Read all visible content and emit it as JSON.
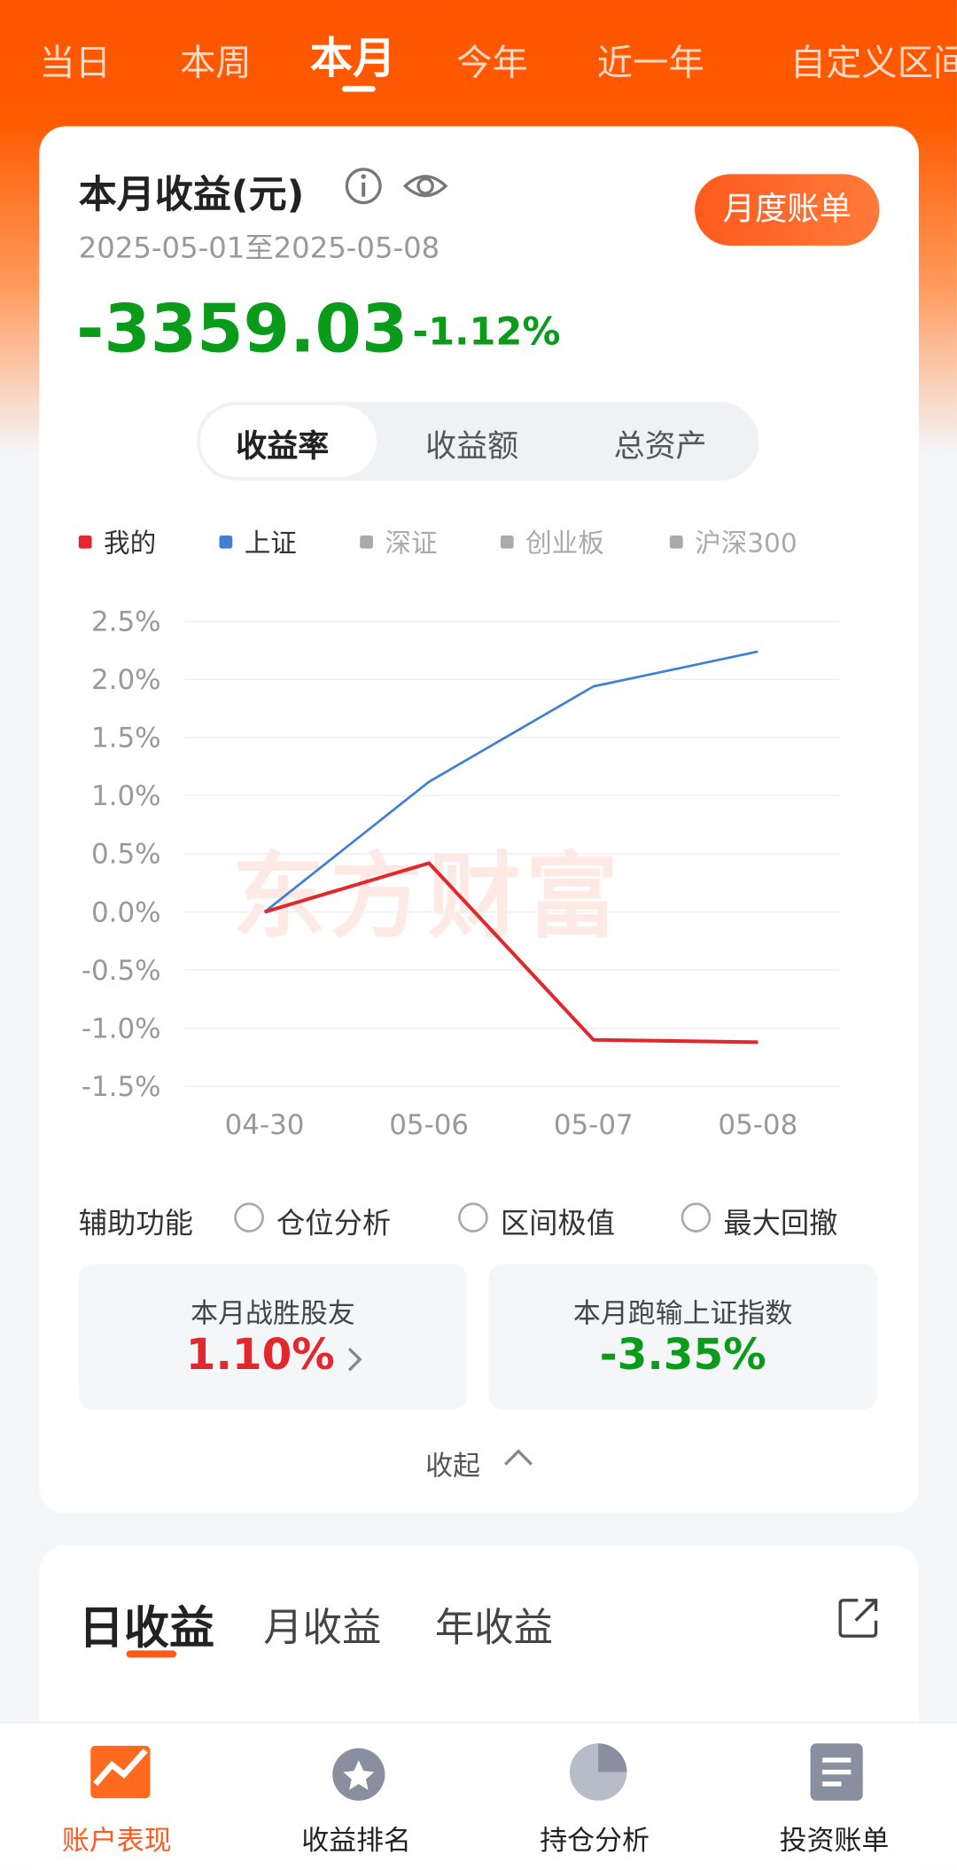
{
  "period_tabs": [
    "当日",
    "本周",
    "本月",
    "今年",
    "近一年",
    "自定义区间"
  ],
  "summary": {
    "title": "本月收益(元)",
    "date_range": "2025-05-01至2025-05-08",
    "amount": "-3359.03",
    "percent": "-1.12%",
    "bill_button": "月度账单"
  },
  "segments": [
    "收益率",
    "收益额",
    "总资产"
  ],
  "chart_data": {
    "type": "line",
    "categories": [
      "04-30",
      "05-06",
      "05-07",
      "05-08"
    ],
    "series": [
      {
        "name": "我的",
        "color": "#e0282e",
        "values": [
          0,
          0.42,
          -1.1,
          -1.12
        ]
      },
      {
        "name": "上证",
        "color": "#3f7fd4",
        "values": [
          0,
          1.12,
          1.94,
          2.24
        ]
      }
    ],
    "ylim": [
      -1.5,
      2.5
    ],
    "yticks": [
      {
        "value": -1.5,
        "label": "-1.5%"
      },
      {
        "value": -1.0,
        "label": "-1.0%"
      },
      {
        "value": -0.5,
        "label": "-0.5%"
      },
      {
        "value": 0,
        "label": "0.0%"
      },
      {
        "value": 0.5,
        "label": "0.5%"
      },
      {
        "value": 1.0,
        "label": "1.0%"
      },
      {
        "value": 1.5,
        "label": "1.5%"
      },
      {
        "value": 2.0,
        "label": "2.0%"
      },
      {
        "value": 2.5,
        "label": "2.5%"
      }
    ],
    "grid": true
  },
  "legend_inactive": [
    "深证",
    "创业板",
    "沪深300"
  ],
  "watermark": "东方财富",
  "aux": {
    "label": "辅助功能",
    "options": [
      "仓位分析",
      "区间极值",
      "最大回撤"
    ]
  },
  "stats": [
    {
      "label": "本月战胜股友",
      "value": "1.10%"
    },
    {
      "label": "本月跑输上证指数",
      "value": "-3.35%"
    }
  ],
  "collapse": "收起",
  "income_tabs": [
    "日收益",
    "月收益",
    "年收益"
  ],
  "nav": [
    "账户表现",
    "收益排名",
    "持仓分析",
    "投资账单"
  ]
}
